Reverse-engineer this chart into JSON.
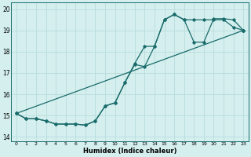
{
  "xlabel": "Humidex (Indice chaleur)",
  "background_color": "#d4efee",
  "line_color": "#1a6b6b",
  "grid_color": "#b8dcdc",
  "xlim": [
    -0.5,
    23.5
  ],
  "ylim": [
    13.8,
    20.3
  ],
  "yticks": [
    14,
    15,
    16,
    17,
    18,
    19,
    20
  ],
  "xticks": [
    0,
    1,
    2,
    3,
    4,
    5,
    6,
    7,
    8,
    9,
    10,
    11,
    12,
    13,
    14,
    15,
    16,
    17,
    18,
    19,
    20,
    21,
    22,
    23
  ],
  "series1_x": [
    0,
    1,
    2,
    3,
    4,
    5,
    6,
    7,
    8,
    9,
    10,
    11,
    12,
    13,
    14,
    15,
    16,
    17,
    18,
    19,
    20,
    21,
    22,
    23
  ],
  "series1_y": [
    15.1,
    14.85,
    14.85,
    14.75,
    14.6,
    14.6,
    14.6,
    14.55,
    14.75,
    15.45,
    15.6,
    16.55,
    17.4,
    17.3,
    18.25,
    19.5,
    19.75,
    19.5,
    19.5,
    19.5,
    19.5,
    19.5,
    19.15,
    19.0
  ],
  "series2_x": [
    0,
    1,
    2,
    3,
    4,
    5,
    6,
    7,
    8,
    9,
    10,
    11,
    12,
    13,
    14,
    15,
    16,
    17,
    18,
    19,
    20,
    21,
    22,
    23
  ],
  "series2_y": [
    15.1,
    14.85,
    14.85,
    14.75,
    14.6,
    14.6,
    14.6,
    14.55,
    14.75,
    15.45,
    15.6,
    16.55,
    17.45,
    18.25,
    18.25,
    19.5,
    19.75,
    19.5,
    18.45,
    18.45,
    19.55,
    19.55,
    19.5,
    19.0
  ],
  "series3_x": [
    0,
    23
  ],
  "series3_y": [
    15.1,
    19.0
  ]
}
